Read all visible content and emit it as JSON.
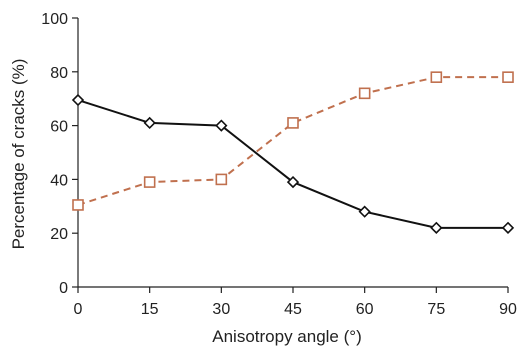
{
  "chart_data": {
    "type": "line",
    "title": "",
    "xlabel": "Anisotropy angle (°)",
    "ylabel": "Percentage of cracks (%)",
    "x": [
      0,
      15,
      30,
      45,
      60,
      75,
      90
    ],
    "xlim": [
      0,
      90
    ],
    "ylim": [
      0,
      100
    ],
    "xticks": [
      0,
      15,
      30,
      45,
      60,
      75,
      90
    ],
    "yticks": [
      0,
      20,
      40,
      60,
      80,
      100
    ],
    "grid": false,
    "legend": "none",
    "series": [
      {
        "values": [
          69.5,
          61,
          60,
          39,
          28,
          22,
          22
        ],
        "color": "#111111",
        "line_style": "solid",
        "marker": "diamond-open"
      },
      {
        "values": [
          30.5,
          39,
          40,
          61,
          72,
          78,
          78
        ],
        "color": "#c0704e",
        "line_style": "dashed",
        "marker": "square-open"
      }
    ]
  }
}
